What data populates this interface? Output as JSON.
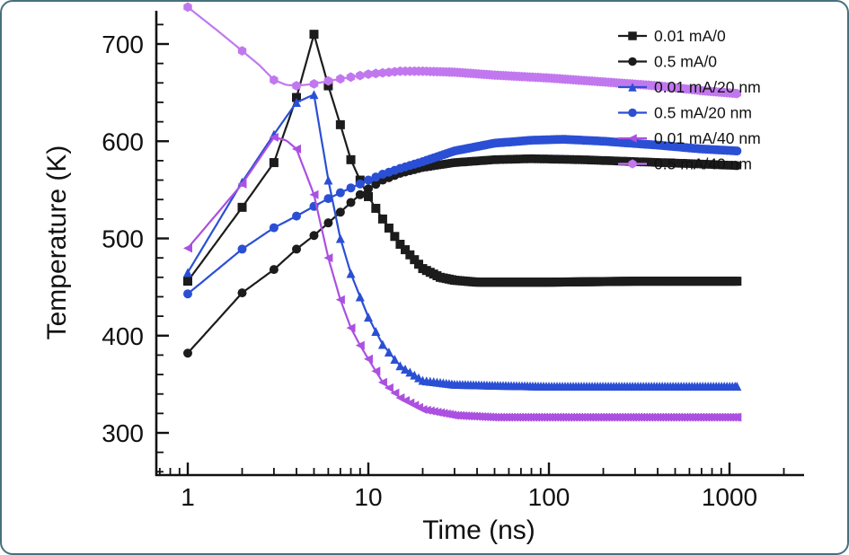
{
  "chart_data": {
    "type": "line",
    "title": "",
    "xlabel": "Time (ns)",
    "ylabel": "Temperature (K)",
    "x_scale": "log",
    "y_scale": "linear",
    "xlim": [
      0.67,
      2600
    ],
    "ylim": [
      256,
      734
    ],
    "x_ticks": [
      1,
      10,
      100,
      1000
    ],
    "y_ticks": [
      300,
      400,
      500,
      600,
      700
    ],
    "y_minor_step": 20,
    "grid": false,
    "legend_position": "top-right",
    "frame": "left-bottom-spines",
    "series": [
      {
        "name": "0.01 mA/0",
        "color": "#1c1c1c",
        "marker": "square",
        "points": [
          [
            1,
            456
          ],
          [
            2,
            532
          ],
          [
            3,
            578
          ],
          [
            4,
            645
          ],
          [
            5,
            710
          ],
          [
            6,
            657
          ],
          [
            7,
            617
          ],
          [
            8,
            581
          ],
          [
            9,
            560
          ],
          [
            10,
            543
          ],
          [
            12,
            520
          ],
          [
            15,
            494
          ],
          [
            20,
            469
          ],
          [
            25,
            460
          ],
          [
            30,
            457
          ],
          [
            40,
            455
          ],
          [
            60,
            455
          ],
          [
            100,
            455
          ],
          [
            300,
            456
          ],
          [
            600,
            456
          ],
          [
            1100,
            456
          ]
        ]
      },
      {
        "name": "0.5 mA/0",
        "color": "#1c1c1c",
        "marker": "circle",
        "points": [
          [
            1,
            382
          ],
          [
            2,
            444
          ],
          [
            3,
            468
          ],
          [
            4,
            489
          ],
          [
            5,
            503
          ],
          [
            6,
            516
          ],
          [
            7,
            527
          ],
          [
            8,
            537
          ],
          [
            9,
            545
          ],
          [
            10,
            551
          ],
          [
            12,
            560
          ],
          [
            15,
            567
          ],
          [
            20,
            573
          ],
          [
            30,
            578
          ],
          [
            50,
            581
          ],
          [
            80,
            582
          ],
          [
            150,
            581
          ],
          [
            300,
            579
          ],
          [
            600,
            577
          ],
          [
            1100,
            575
          ]
        ]
      },
      {
        "name": "0.01 mA/20 nm",
        "color": "#2b4fd4",
        "marker": "triangle-up",
        "points": [
          [
            1,
            465
          ],
          [
            2,
            558
          ],
          [
            3,
            607
          ],
          [
            4,
            640
          ],
          [
            5,
            648
          ],
          [
            6,
            560
          ],
          [
            7,
            500
          ],
          [
            8,
            464
          ],
          [
            9,
            440
          ],
          [
            10,
            419
          ],
          [
            12,
            391
          ],
          [
            15,
            369
          ],
          [
            20,
            354
          ],
          [
            30,
            350
          ],
          [
            50,
            349
          ],
          [
            100,
            348
          ],
          [
            300,
            348
          ],
          [
            1100,
            348
          ]
        ]
      },
      {
        "name": "0.5 mA/20 nm",
        "color": "#2b4fd4",
        "marker": "circle",
        "points": [
          [
            1,
            443
          ],
          [
            2,
            489
          ],
          [
            3,
            511
          ],
          [
            4,
            523
          ],
          [
            5,
            533
          ],
          [
            6,
            541
          ],
          [
            7,
            547
          ],
          [
            8,
            552
          ],
          [
            9,
            556
          ],
          [
            10,
            560
          ],
          [
            12,
            566
          ],
          [
            15,
            572
          ],
          [
            20,
            579
          ],
          [
            30,
            590
          ],
          [
            50,
            598
          ],
          [
            80,
            601
          ],
          [
            120,
            602
          ],
          [
            200,
            600
          ],
          [
            400,
            596
          ],
          [
            700,
            592
          ],
          [
            1100,
            590
          ]
        ]
      },
      {
        "name": "0.01 mA/40 nm",
        "color": "#ab50e0",
        "marker": "triangle-left",
        "points": [
          [
            1,
            490
          ],
          [
            2,
            556
          ],
          [
            3,
            604
          ],
          [
            3.5,
            601
          ],
          [
            4,
            592
          ],
          [
            5,
            545
          ],
          [
            6,
            480
          ],
          [
            7,
            437
          ],
          [
            8,
            408
          ],
          [
            9,
            390
          ],
          [
            10,
            376
          ],
          [
            12,
            352
          ],
          [
            15,
            336
          ],
          [
            20,
            324
          ],
          [
            30,
            318
          ],
          [
            50,
            316
          ],
          [
            100,
            316
          ],
          [
            300,
            316
          ],
          [
            1100,
            316
          ]
        ]
      },
      {
        "name": "0.5 mA/40 nm",
        "color": "#c178ef",
        "marker": "hexagon",
        "points": [
          [
            1,
            738
          ],
          [
            1.5,
            712
          ],
          [
            2,
            693
          ],
          [
            2.5,
            678
          ],
          [
            3,
            663
          ],
          [
            3.5,
            658
          ],
          [
            4,
            657
          ],
          [
            5,
            659
          ],
          [
            6,
            662
          ],
          [
            8,
            666
          ],
          [
            10,
            669
          ],
          [
            15,
            672
          ],
          [
            20,
            672
          ],
          [
            30,
            671
          ],
          [
            50,
            668
          ],
          [
            100,
            665
          ],
          [
            200,
            661
          ],
          [
            400,
            657
          ],
          [
            700,
            652
          ],
          [
            1100,
            649
          ]
        ]
      }
    ]
  }
}
